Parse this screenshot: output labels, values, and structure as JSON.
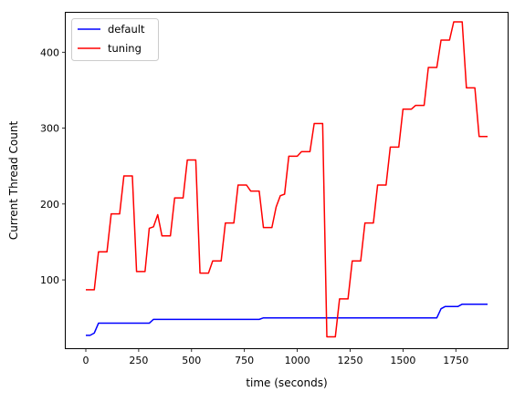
{
  "chart_data": {
    "type": "line",
    "title": "",
    "xlabel": "time (seconds)",
    "ylabel": "Current Thread Count",
    "xlim": [
      -95,
      1995
    ],
    "ylim": [
      10,
      452
    ],
    "xticks": [
      0,
      250,
      500,
      750,
      1000,
      1250,
      1500,
      1750
    ],
    "xtick_labels": [
      "0",
      "250",
      "500",
      "750",
      "1000",
      "1250",
      "1500",
      "1750"
    ],
    "yticks": [
      100,
      200,
      300,
      400
    ],
    "ytick_labels": [
      "100",
      "200",
      "300",
      "400"
    ],
    "grid": false,
    "legend_position": "upper-left",
    "series": [
      {
        "name": "default",
        "color": "#0000ff",
        "x": [
          0,
          20,
          40,
          60,
          300,
          320,
          820,
          840,
          1660,
          1680,
          1700,
          1760,
          1780,
          1900
        ],
        "y": [
          27,
          27,
          30,
          43,
          43,
          48,
          48,
          50,
          50,
          62,
          65,
          65,
          68,
          68
        ]
      },
      {
        "name": "tuning",
        "color": "#ff0000",
        "x": [
          0,
          40,
          60,
          100,
          120,
          160,
          180,
          220,
          240,
          280,
          300,
          320,
          340,
          360,
          400,
          420,
          460,
          480,
          520,
          540,
          580,
          600,
          640,
          660,
          700,
          720,
          760,
          780,
          820,
          840,
          880,
          900,
          920,
          940,
          960,
          1000,
          1020,
          1060,
          1080,
          1120,
          1140,
          1180,
          1200,
          1240,
          1260,
          1300,
          1320,
          1360,
          1380,
          1420,
          1440,
          1480,
          1500,
          1540,
          1560,
          1600,
          1620,
          1660,
          1680,
          1720,
          1740,
          1780,
          1800,
          1840,
          1860,
          1900
        ],
        "y": [
          87,
          87,
          137,
          137,
          187,
          187,
          237,
          237,
          111,
          111,
          168,
          170,
          186,
          158,
          158,
          208,
          208,
          258,
          258,
          109,
          109,
          125,
          125,
          175,
          175,
          225,
          225,
          217,
          217,
          169,
          169,
          196,
          211,
          213,
          263,
          263,
          269,
          269,
          306,
          306,
          25,
          25,
          75,
          75,
          125,
          125,
          175,
          175,
          225,
          225,
          275,
          275,
          325,
          325,
          330,
          330,
          380,
          380,
          416,
          416,
          440,
          440,
          353,
          353,
          289,
          289
        ]
      }
    ]
  }
}
